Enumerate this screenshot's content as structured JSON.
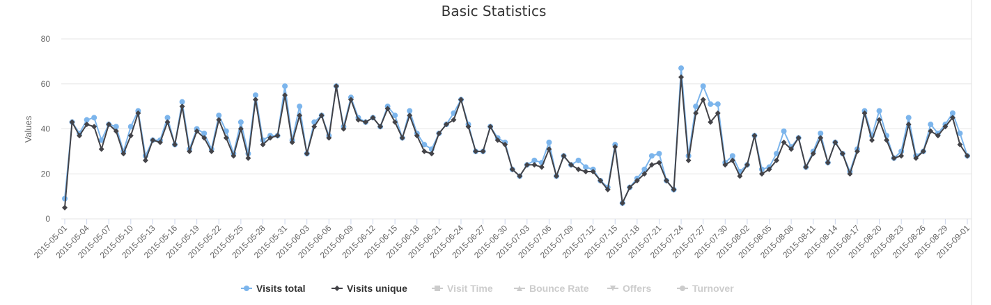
{
  "chart_data": {
    "type": "line",
    "title": "Basic Statistics",
    "ylabel": "Values",
    "xlabel": "",
    "ylim": [
      0,
      80
    ],
    "yticks": [
      0,
      20,
      40,
      60,
      80
    ],
    "grid": true,
    "legend_position": "bottom",
    "x_start": "2015-05-01",
    "x_end": "2015-09-01",
    "x_tick_labels": [
      "2015-05-01",
      "2015-05-04",
      "2015-05-07",
      "2015-05-10",
      "2015-05-13",
      "2015-05-16",
      "2015-05-19",
      "2015-05-22",
      "2015-05-25",
      "2015-05-28",
      "2015-05-31",
      "2015-06-03",
      "2015-06-06",
      "2015-06-09",
      "2015-06-12",
      "2015-06-15",
      "2015-06-18",
      "2015-06-21",
      "2015-06-24",
      "2015-06-27",
      "2015-06-30",
      "2015-07-03",
      "2015-07-06",
      "2015-07-09",
      "2015-07-12",
      "2015-07-15",
      "2015-07-18",
      "2015-07-21",
      "2015-07-24",
      "2015-07-27",
      "2015-07-30",
      "2015-08-02",
      "2015-08-05",
      "2015-08-08",
      "2015-08-11",
      "2015-08-14",
      "2015-08-17",
      "2015-08-20",
      "2015-08-23",
      "2015-08-26",
      "2015-08-29",
      "2015-09-01"
    ],
    "series": [
      {
        "name": "Visits total",
        "color": "#7cb5ec",
        "marker": "circle",
        "values": [
          9,
          43,
          38,
          44,
          45,
          35,
          42,
          41,
          30,
          41,
          48,
          28,
          35,
          35,
          45,
          33,
          52,
          31,
          40,
          38,
          31,
          46,
          39,
          29,
          43,
          29,
          55,
          35,
          37,
          37,
          59,
          35,
          50,
          29,
          43,
          46,
          37,
          59,
          41,
          54,
          45,
          43,
          45,
          41,
          50,
          46,
          36,
          48,
          38,
          33,
          31,
          38,
          42,
          47,
          53,
          42,
          30,
          30,
          41,
          36,
          34,
          22,
          19,
          24,
          26,
          25,
          34,
          19,
          28,
          24,
          26,
          23,
          22,
          17,
          14,
          33,
          7,
          14,
          18,
          22,
          28,
          29,
          17,
          13,
          67,
          28,
          50,
          59,
          51,
          51,
          25,
          28,
          21,
          24,
          37,
          22,
          23,
          29,
          39,
          32,
          36,
          23,
          30,
          38,
          25,
          34,
          29,
          21,
          31,
          48,
          37,
          48,
          37,
          27,
          30,
          45,
          28,
          30,
          42,
          38,
          42,
          47,
          38,
          28
        ]
      },
      {
        "name": "Visits unique",
        "color": "#434348",
        "marker": "diamond",
        "values": [
          5,
          43,
          37,
          42,
          41,
          31,
          42,
          39,
          29,
          37,
          47,
          26,
          35,
          34,
          43,
          33,
          50,
          30,
          39,
          36,
          30,
          44,
          36,
          28,
          40,
          27,
          53,
          33,
          36,
          37,
          55,
          34,
          46,
          29,
          41,
          46,
          36,
          59,
          40,
          53,
          44,
          43,
          45,
          41,
          49,
          43,
          36,
          46,
          37,
          30,
          29,
          38,
          42,
          44,
          53,
          41,
          30,
          30,
          41,
          35,
          33,
          22,
          19,
          24,
          24,
          23,
          31,
          19,
          28,
          24,
          22,
          21,
          21,
          17,
          13,
          32,
          7,
          14,
          17,
          20,
          24,
          25,
          17,
          13,
          63,
          26,
          47,
          53,
          43,
          47,
          24,
          26,
          19,
          24,
          37,
          20,
          22,
          26,
          34,
          31,
          36,
          23,
          29,
          36,
          25,
          34,
          29,
          20,
          30,
          47,
          35,
          44,
          35,
          27,
          28,
          42,
          27,
          30,
          39,
          37,
          41,
          45,
          33,
          28
        ]
      }
    ],
    "legend": [
      {
        "name": "Visits total",
        "visible": true,
        "color": "#7cb5ec",
        "symbol": "circle"
      },
      {
        "name": "Visits unique",
        "visible": true,
        "color": "#434348",
        "symbol": "diamond"
      },
      {
        "name": "Visit Time",
        "visible": false,
        "color": "#cccccc",
        "symbol": "square"
      },
      {
        "name": "Bounce Rate",
        "visible": false,
        "color": "#cccccc",
        "symbol": "triangle"
      },
      {
        "name": "Offers",
        "visible": false,
        "color": "#cccccc",
        "symbol": "triangle-down"
      },
      {
        "name": "Turnover",
        "visible": false,
        "color": "#cccccc",
        "symbol": "circle"
      }
    ]
  }
}
